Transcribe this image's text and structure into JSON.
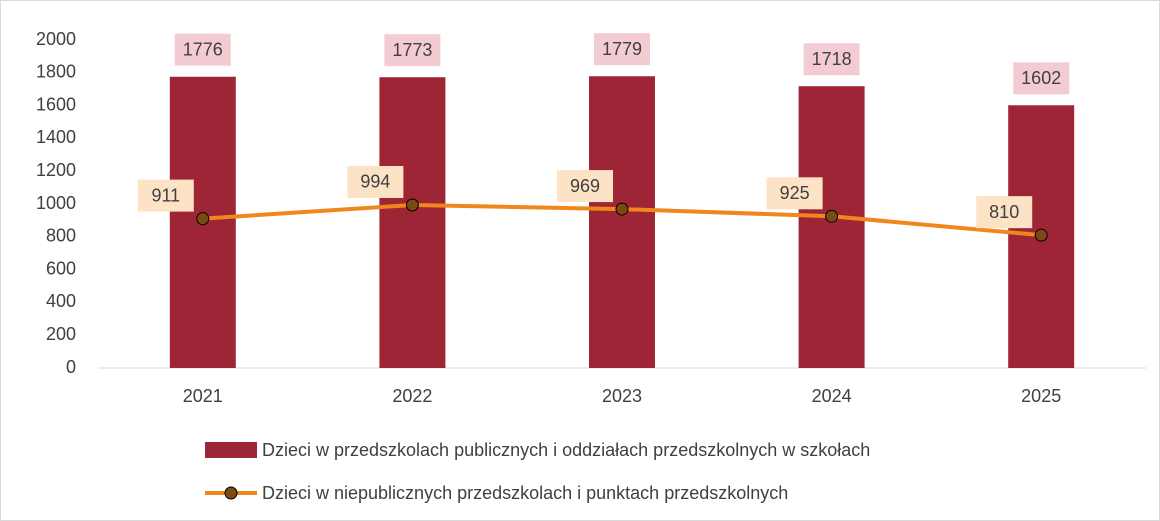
{
  "chart_data": {
    "type": "bar",
    "categories": [
      "2021",
      "2022",
      "2023",
      "2024",
      "2025"
    ],
    "series": [
      {
        "name": "Dzieci w przedszkolach publicznych i oddziałach przedszkolnych w szkołach",
        "type": "bar",
        "color": "#9e2536",
        "label_color": "#f2ccd2",
        "values": [
          1776,
          1773,
          1779,
          1718,
          1602
        ]
      },
      {
        "name": "Dzieci w niepublicznych przedszkolach i punktach przedszkolnych",
        "type": "line",
        "color": "#f0861c",
        "marker_color": "#7b4a12",
        "label_color": "#fde3c6",
        "values": [
          911,
          994,
          969,
          925,
          810
        ]
      }
    ],
    "ylim": [
      0,
      2000
    ],
    "yticks": [
      0,
      200,
      400,
      600,
      800,
      1000,
      1200,
      1400,
      1600,
      1800,
      2000
    ],
    "grid": false,
    "legend": "bottom"
  }
}
